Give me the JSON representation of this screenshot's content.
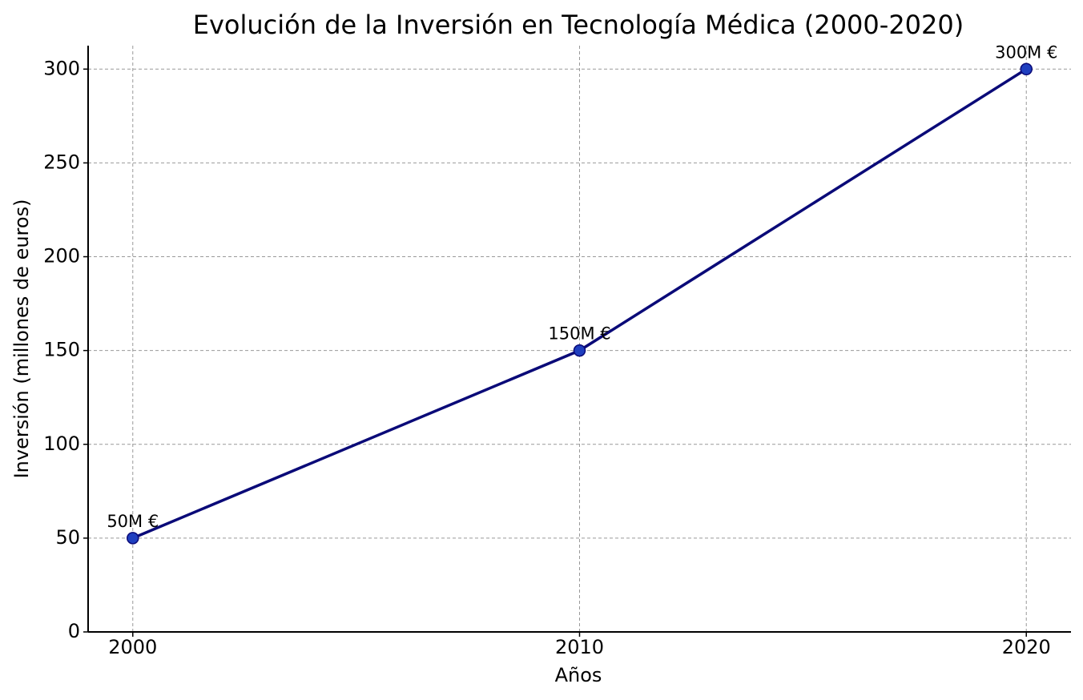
{
  "chart_data": {
    "type": "line",
    "title": "Evolución de la Inversión en Tecnología Médica (2000-2020)",
    "x_label": "Años",
    "y_label": "Inversión (millones de euros)",
    "x": [
      2000,
      2010,
      2020
    ],
    "series": [
      {
        "name": "Inversión",
        "color": "#0a0a78",
        "marker_color": "#1f3fbf",
        "values": [
          50,
          150,
          300
        ],
        "value_labels": [
          "50M €",
          "150M €",
          "300M €"
        ]
      }
    ],
    "xlim": [
      1999,
      2021
    ],
    "xticks": [
      2000,
      2010,
      2020
    ],
    "ylim": [
      0,
      312.5
    ],
    "yticks": [
      0,
      50,
      100,
      150,
      200,
      250,
      300
    ],
    "grid": true
  }
}
